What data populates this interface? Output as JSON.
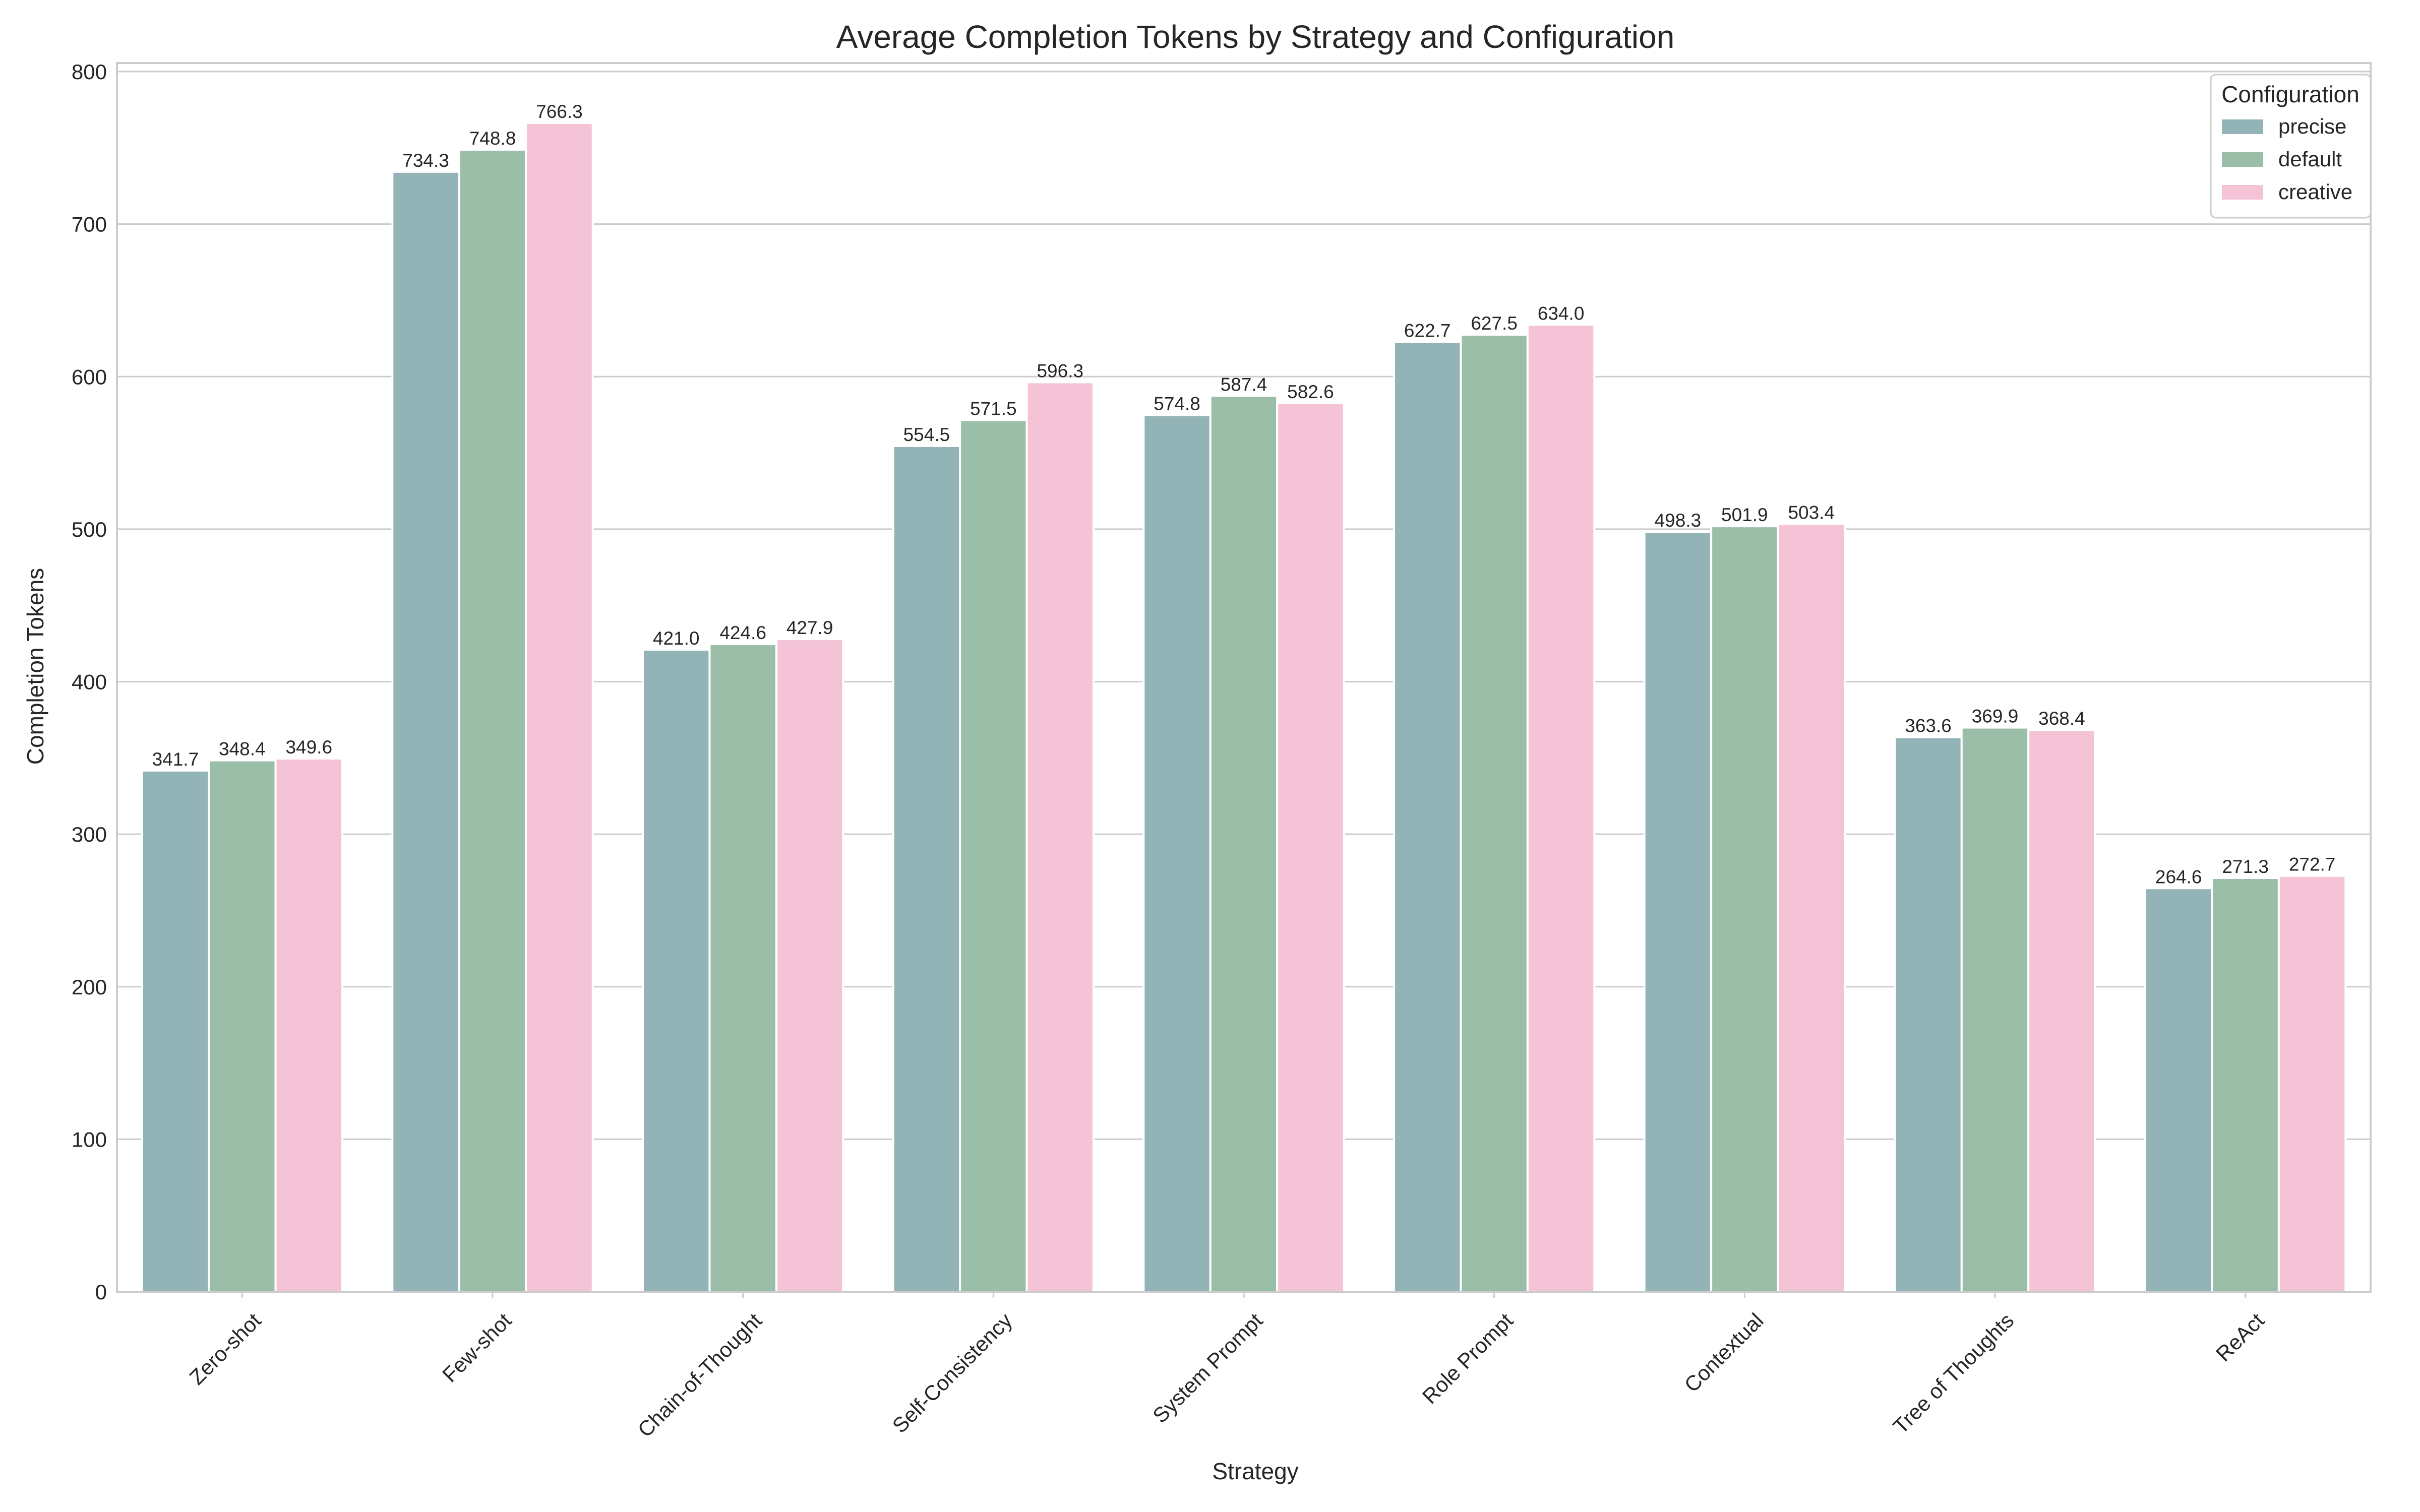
{
  "chart_data": {
    "type": "bar",
    "title": "Average Completion Tokens  by Strategy and Configuration",
    "xlabel": "Strategy",
    "ylabel": "Completion Tokens",
    "ylim": [
      0,
      800
    ],
    "yticks": [
      0,
      100,
      200,
      300,
      400,
      500,
      600,
      700,
      800
    ],
    "grid": "horizontal",
    "legend_title": "Configuration",
    "legend_position": "top-right",
    "categories": [
      "Zero-shot",
      "Few-shot",
      "Chain-of-Thought",
      "Self-Consistency",
      "System Prompt",
      "Role Prompt",
      "Contextual",
      "Tree of Thoughts",
      "ReAct"
    ],
    "series": [
      {
        "name": "precise",
        "color": "#93b4b6",
        "values": [
          341.7,
          734.3,
          421.0,
          554.5,
          574.8,
          622.7,
          498.3,
          363.6,
          264.6
        ]
      },
      {
        "name": "default",
        "color": "#9bbea8",
        "values": [
          348.4,
          748.8,
          424.6,
          571.5,
          587.4,
          627.5,
          501.9,
          369.9,
          271.3
        ]
      },
      {
        "name": "creative",
        "color": "#f4c3d6",
        "values": [
          349.6,
          766.3,
          427.9,
          596.3,
          582.6,
          634.0,
          503.4,
          368.4,
          272.7
        ]
      }
    ]
  }
}
